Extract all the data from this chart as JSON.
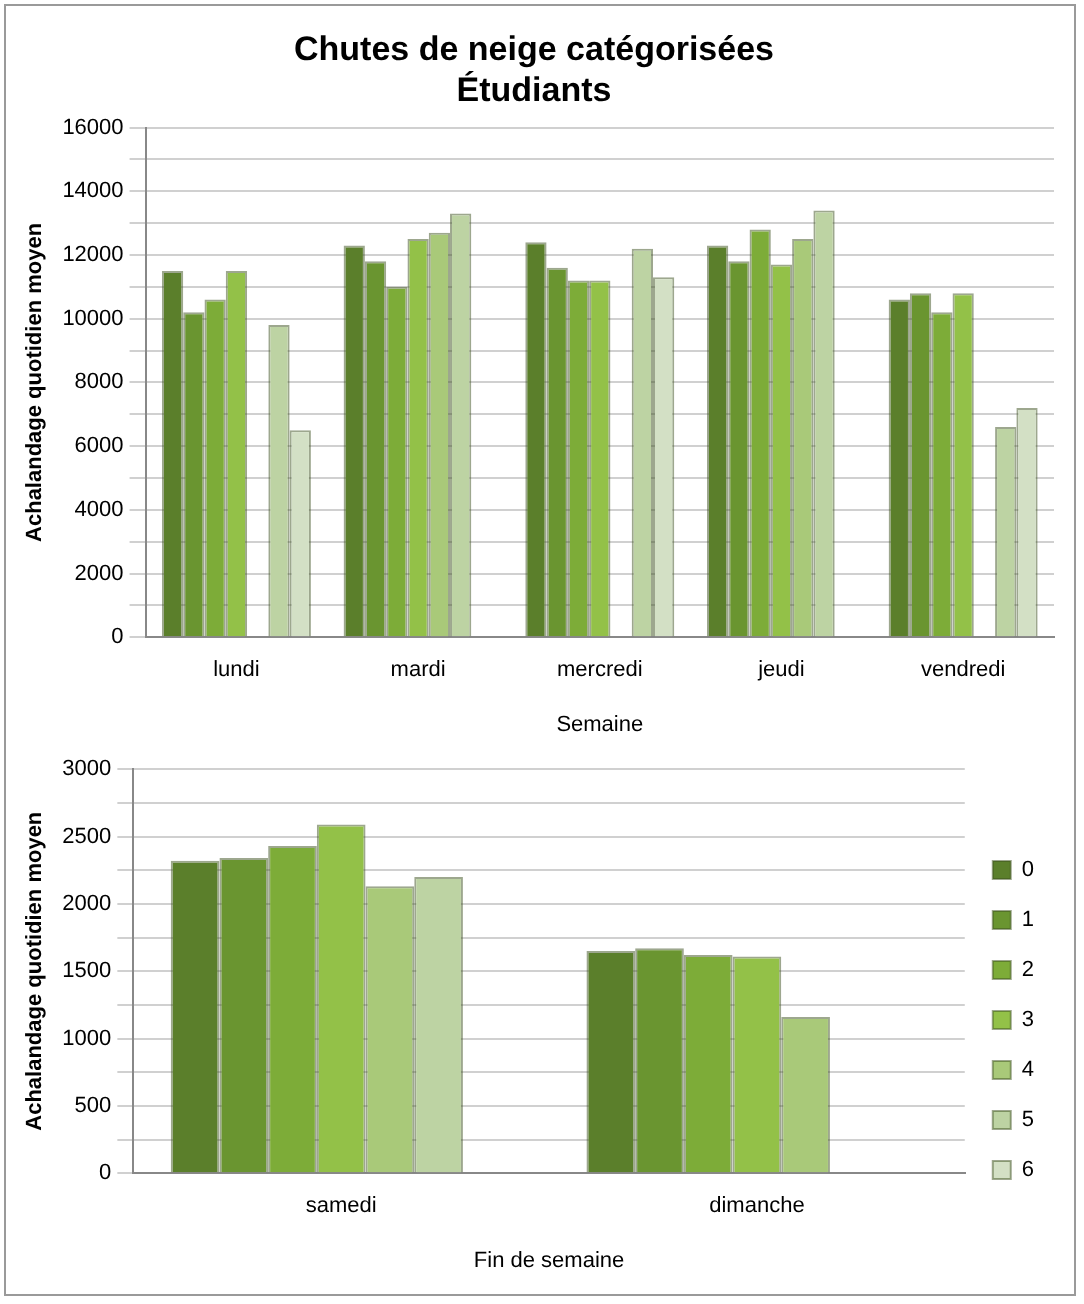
{
  "chart_data": [
    {
      "type": "bar",
      "title": "Chutes de neige catégorisées",
      "subtitle": "Étudiants",
      "xlabel": "Semaine",
      "ylabel": "Achalandage quotidien moyen",
      "categories": [
        "lundi",
        "mardi",
        "mercredi",
        "jeudi",
        "vendredi"
      ],
      "series": [
        {
          "color": "#5b7f2b",
          "values": [
            11500,
            12300,
            12400,
            12300,
            10600
          ]
        },
        {
          "color": "#6a9530",
          "values": [
            10200,
            11800,
            11600,
            11800,
            10800
          ]
        },
        {
          "color": "#7dac38",
          "values": [
            10600,
            11000,
            11200,
            12800,
            10200
          ]
        },
        {
          "color": "#93c148",
          "values": [
            11500,
            12500,
            11200,
            11700,
            10800
          ]
        },
        {
          "color": "#a9c979",
          "values": [
            null,
            12700,
            null,
            12500,
            null
          ]
        },
        {
          "color": "#bdd3a3",
          "values": [
            9800,
            13300,
            12200,
            13400,
            6600
          ]
        },
        {
          "color": "#d3e0c5",
          "values": [
            6500,
            null,
            11300,
            null,
            7200
          ]
        }
      ],
      "ylim": [
        0,
        16000
      ],
      "yticks": [
        0,
        {
          "value": 1000,
          "label": null
        },
        2000,
        {
          "value": 3000,
          "label": null
        },
        4000,
        {
          "value": 5000,
          "label": null
        },
        6000,
        {
          "value": 7000,
          "label": null
        },
        8000,
        {
          "value": 9000,
          "label": null
        },
        10000,
        {
          "value": 11000,
          "label": null
        },
        12000,
        {
          "value": 13000,
          "label": null
        },
        14000,
        {
          "value": 15000,
          "label": null
        },
        16000
      ],
      "grid": "y",
      "legend": false
    },
    {
      "type": "bar",
      "xlabel": "Fin de semaine",
      "ylabel": "Achalandage quotidien moyen",
      "categories": [
        "samedi",
        "dimanche"
      ],
      "series": [
        {
          "name": "0",
          "color": "#5b7f2b",
          "values": [
            2320,
            1650
          ]
        },
        {
          "name": "1",
          "color": "#6a9530",
          "values": [
            2340,
            1670
          ]
        },
        {
          "name": "2",
          "color": "#7dac38",
          "values": [
            2430,
            1620
          ]
        },
        {
          "name": "3",
          "color": "#93c148",
          "values": [
            2590,
            1610
          ]
        },
        {
          "name": "4",
          "color": "#a9c979",
          "values": [
            2130,
            1160
          ]
        },
        {
          "name": "5",
          "color": "#bdd3a3",
          "values": [
            2200,
            null
          ]
        },
        {
          "name": "6",
          "color": "#d3e0c5",
          "values": [
            null,
            null
          ]
        }
      ],
      "ylim": [
        0,
        3000
      ],
      "yticks": [
        0,
        {
          "value": 250,
          "label": null
        },
        500,
        {
          "value": 750,
          "label": null
        },
        1000,
        {
          "value": 1250,
          "label": null
        },
        1500,
        {
          "value": 1750,
          "label": null
        },
        2000,
        {
          "value": 2250,
          "label": null
        },
        2500,
        {
          "value": 2750,
          "label": null
        },
        3000
      ],
      "grid": "y",
      "legend": "right"
    }
  ]
}
